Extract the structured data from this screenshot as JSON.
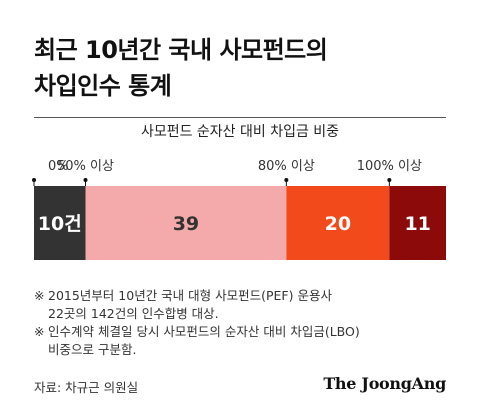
{
  "title": {
    "line1": "최근 10년간 국내 사모펀드의",
    "line2": "차입인수 통계"
  },
  "chart_data": {
    "type": "bar",
    "title": "사모펀드 순자산 대비 차입금 비중",
    "orientation": "horizontal-stacked",
    "categories": [
      "0%",
      "50% 이상",
      "80% 이상",
      "100% 이상"
    ],
    "values": [
      10,
      39,
      20,
      11
    ],
    "value_labels": [
      "10건",
      "39",
      "20",
      "11"
    ],
    "colors": [
      "#333333",
      "#f4aaaa",
      "#f24a1a",
      "#8c0a0a"
    ],
    "label_colors": [
      "#ffffff",
      "#333333",
      "#ffffff",
      "#ffffff"
    ],
    "total": 80
  },
  "notes": [
    {
      "mark": "※",
      "text": "2015년부터 10년간 국내 대형 사모펀드(PEF) 운용사"
    },
    {
      "mark": "",
      "text": "22곳의 142건의 인수합병 대상."
    },
    {
      "mark": "※",
      "text": "인수계약 체결일 당시 사모펀드의 순자산 대비 차입금(LBO)"
    },
    {
      "mark": "",
      "text": "비중으로 구분함."
    }
  ],
  "source": "자료: 차규근 의원실",
  "brand": "The JoongAng"
}
